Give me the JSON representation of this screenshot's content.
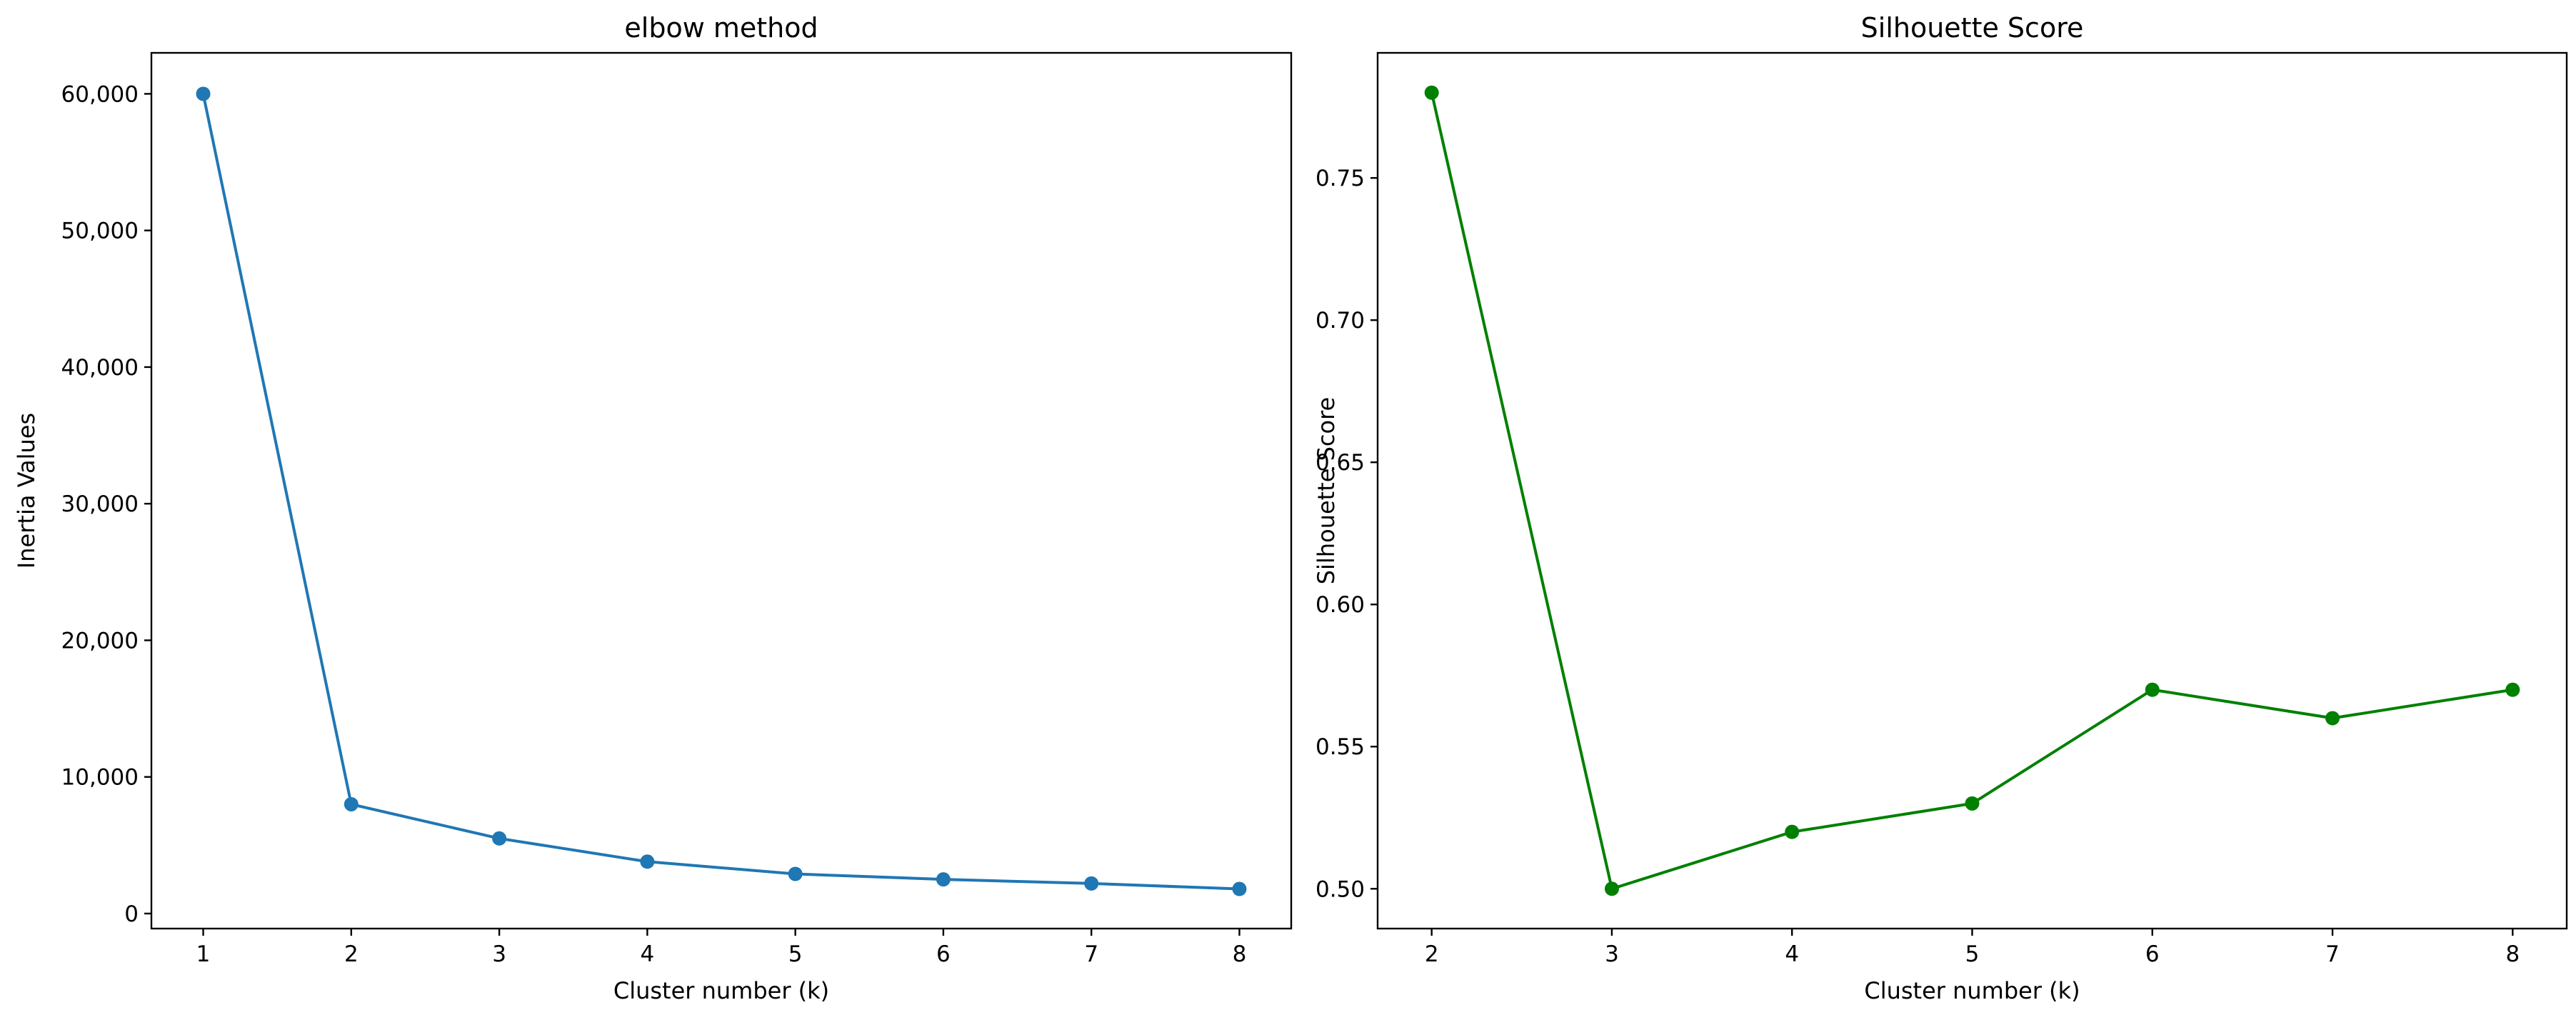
{
  "chart_data": [
    {
      "type": "line",
      "title": "elbow method",
      "xlabel": "Cluster number (k)",
      "ylabel": "Inertia Values",
      "x": [
        1,
        2,
        3,
        4,
        5,
        6,
        7,
        8
      ],
      "series": [
        {
          "values": [
            60000,
            8000,
            5500,
            3800,
            2900,
            2500,
            2200,
            1800
          ],
          "color": "#1f77b4"
        }
      ],
      "xticks": [
        1,
        2,
        3,
        4,
        5,
        6,
        7,
        8
      ],
      "yticks": [
        0,
        10000,
        20000,
        30000,
        40000,
        50000,
        60000
      ],
      "ytick_labels": [
        "0",
        "10,000",
        "20,000",
        "30,000",
        "40,000",
        "50,000",
        "60,000"
      ],
      "xlim": [
        0.65,
        8.35
      ],
      "ylim": [
        -1100,
        63000
      ],
      "marker": "circle",
      "grid": false
    },
    {
      "type": "line",
      "title": "Silhouette Score",
      "xlabel": "Cluster number (k)",
      "ylabel": "Silhouette Score",
      "x": [
        2,
        3,
        4,
        5,
        6,
        7,
        8
      ],
      "series": [
        {
          "values": [
            0.78,
            0.5,
            0.52,
            0.53,
            0.57,
            0.56,
            0.57
          ],
          "color": "#008000"
        }
      ],
      "xticks": [
        2,
        3,
        4,
        5,
        6,
        7,
        8
      ],
      "yticks": [
        0.5,
        0.55,
        0.6,
        0.65,
        0.7,
        0.75
      ],
      "ytick_labels": [
        "0.50",
        "0.55",
        "0.60",
        "0.65",
        "0.70",
        "0.75"
      ],
      "xlim": [
        1.7,
        8.3
      ],
      "ylim": [
        0.486,
        0.794
      ],
      "marker": "circle",
      "grid": false
    }
  ]
}
